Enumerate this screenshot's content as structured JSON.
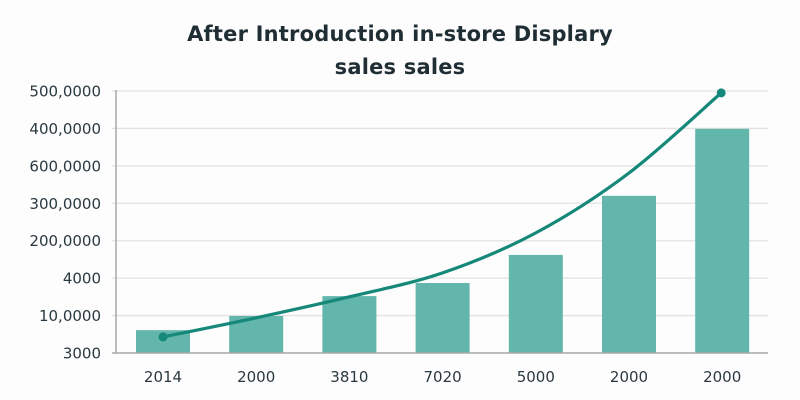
{
  "chart_data": {
    "type": "bar",
    "title_lines": [
      "After Introduction in-store Displary",
      "sales sales"
    ],
    "title": "After Introduction in-store Displary sales sales",
    "xlabel": "",
    "ylabel": "",
    "categories": [
      "2014",
      "2000",
      "3810",
      "7020",
      "5000",
      "2000",
      "2000"
    ],
    "y_tick_labels_bottom_to_top": [
      "3000",
      "10,0000",
      "4000",
      "200,0000",
      "300,0000",
      "600,0000",
      "400,0000",
      "500,0000"
    ],
    "y_axis_note": "Tick labels are non-monotonic; values below are expressed in tick-step units (0 = bottom tick, 7 = top tick).",
    "ylim": [
      0,
      7
    ],
    "grid": true,
    "legend": "none",
    "series": [
      {
        "name": "bars",
        "kind": "bar",
        "color": "#62b6ab",
        "values": [
          0.61,
          0.99,
          1.52,
          1.87,
          2.62,
          4.2,
          5.99
        ]
      },
      {
        "name": "trend",
        "kind": "line",
        "color": "#15887a",
        "smooth": true,
        "endpoint_markers": true,
        "values": [
          0.43,
          0.94,
          1.5,
          2.14,
          3.21,
          4.81,
          6.95
        ]
      }
    ],
    "colors": {
      "title": "#1f2d35",
      "tick_text": "#2a3940",
      "grid": "#e2e2e2",
      "axis": "#a8a8a8"
    }
  }
}
